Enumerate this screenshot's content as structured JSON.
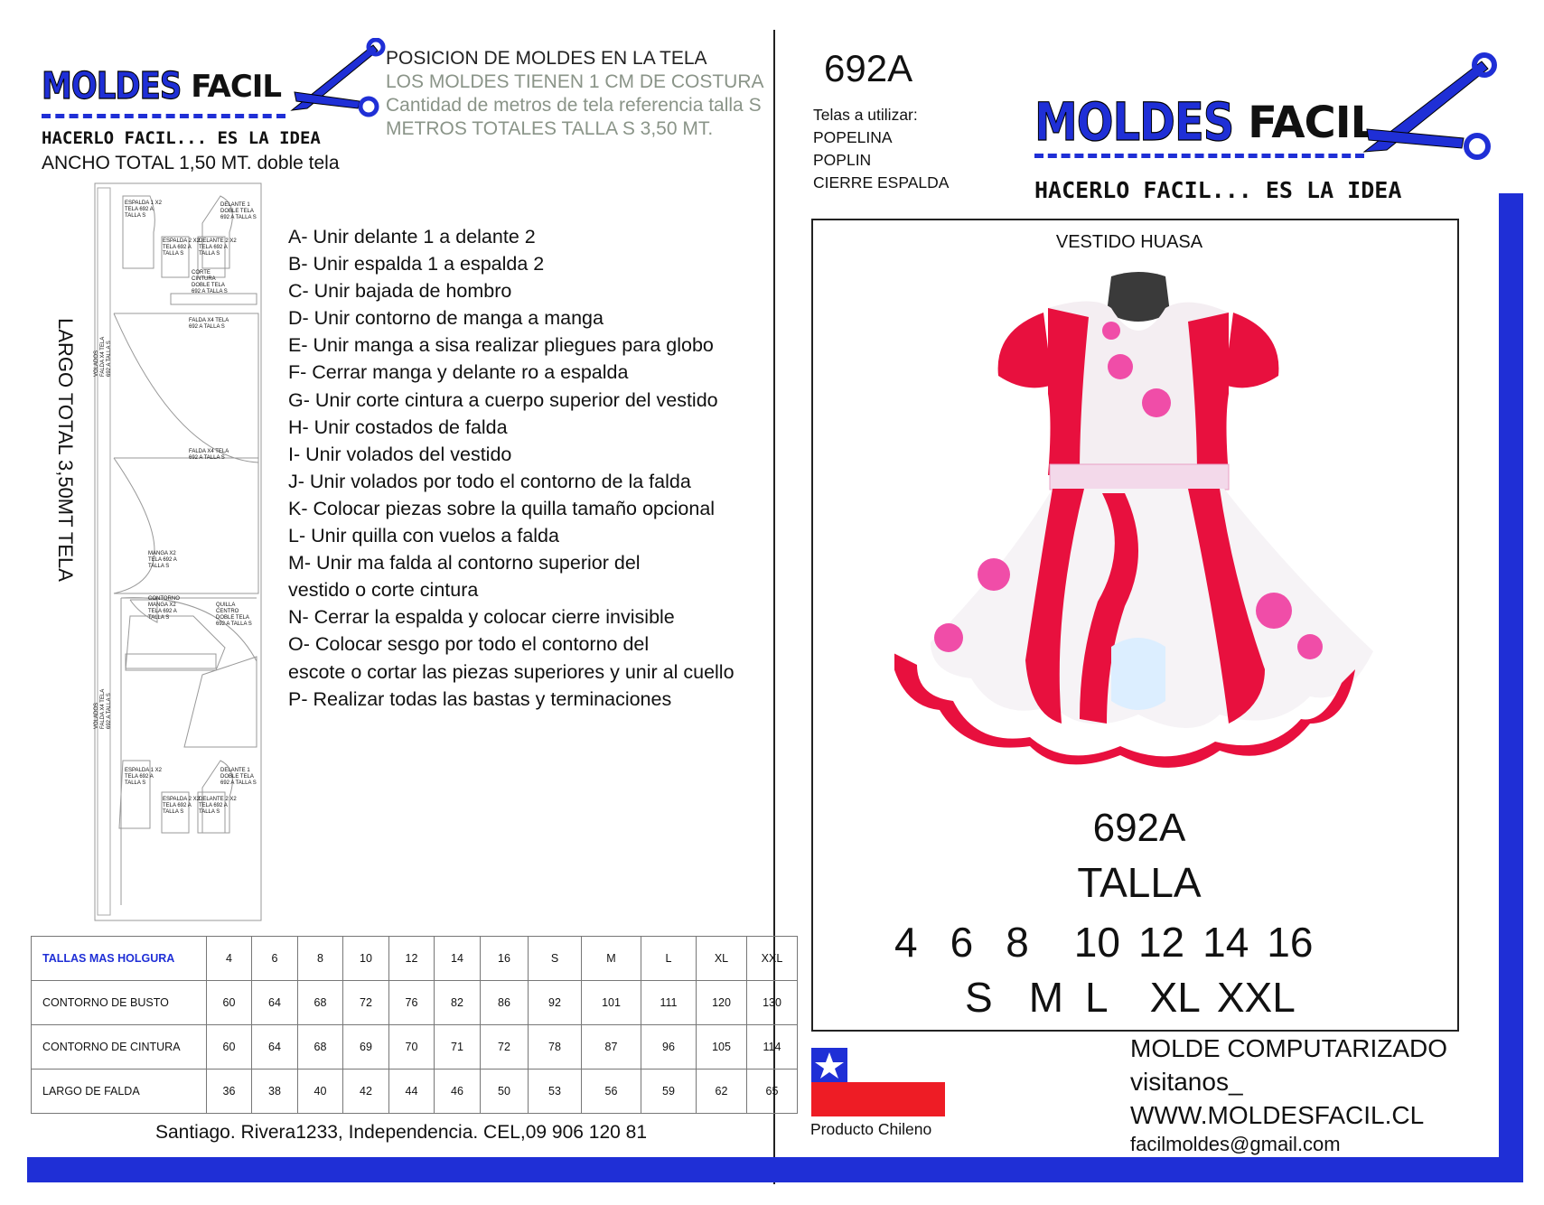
{
  "left": {
    "logo": {
      "brand1": "MOLDES",
      "brand2": "FACIL",
      "tagline": "HACERLO FACIL... ES LA IDEA"
    },
    "width_note": "ANCHO TOTAL  1,50 MT. doble tela",
    "header_lines": [
      "POSICION DE MOLDES EN LA TELA",
      "LOS MOLDES TIENEN 1 CM DE COSTURA",
      "Cantidad de metros de tela referencia talla S",
      "METROS TOTALES TALLA S 3,50 MT."
    ],
    "length_note": "LARGO TOTAL  3,50MT  TELA",
    "pieces": [
      "ESPALDA 1 X2 TELA 692 A TALLA S",
      "DELANTE 1 DOBLE TELA 692 A TALLA S",
      "ESPALDA 2 X2 TELA 692 A TALLA S",
      "DELANTE 2 X2 TELA 692 A TALLA S",
      "CORTE CINTURA DOBLE TELA 692 A TALLA S",
      "VOLADOS FALDA X4 TELA 692 A TALLA S",
      "FALDA X4 TELA 692 A TALLA S",
      "FALDA X4 TELA 692 A TALLA S",
      "MANGA X2 TELA 692 A TALLA S",
      "CONTORNO MANGA X2 TELA 692 A TALLA S",
      "QUILLA CENTRO DOBLE TELA 692 A TALLA S",
      "VOLADOS FALDA X4 TELA 692 A TALLA S",
      "ESPALDA 1 X2 TELA 692 A TALLA S",
      "DELANTE 1 DOBLE TELA 692 A TALLA S",
      "ESPALDA 2 X2 TELA 692 A TALLA S",
      "DELANTE 2 X2 TELA 692 A TALLA S"
    ],
    "steps": [
      "A- Unir delante 1 a delante 2",
      "B- Unir espalda 1 a espalda 2",
      "C- Unir bajada de hombro",
      "D- Unir contorno de manga a manga",
      "E- Unir manga a sisa realizar pliegues para globo",
      "F- Cerrar manga y delante ro a espalda",
      "G- Unir corte cintura a cuerpo superior del vestido",
      "H- Unir costados de falda",
      "I- Unir volados del vestido",
      "J- Unir volados por todo el contorno de la falda",
      "K- Colocar piezas sobre la quilla tamaño opcional",
      "L- Unir quilla con vuelos a falda",
      "M- Unir ma falda al contorno superior del",
      "vestido o corte cintura",
      "N- Cerrar la espalda y colocar cierre invisible",
      "O- Colocar sesgo por todo el contorno del",
      "escote o cortar las piezas superiores y unir al cuello",
      "P- Realizar todas las bastas y terminaciones"
    ],
    "table": {
      "header": [
        "TALLAS MAS HOLGURA",
        "4",
        "6",
        "8",
        "10",
        "12",
        "14",
        "16",
        "S",
        "M",
        "L",
        "XL",
        "XXL"
      ],
      "rows": [
        [
          "CONTORNO DE BUSTO",
          "60",
          "64",
          "68",
          "72",
          "76",
          "82",
          "86",
          "92",
          "101",
          "111",
          "120",
          "130"
        ],
        [
          "CONTORNO DE CINTURA",
          "60",
          "64",
          "68",
          "69",
          "70",
          "71",
          "72",
          "78",
          "87",
          "96",
          "105",
          "114"
        ],
        [
          "LARGO DE FALDA",
          "36",
          "38",
          "40",
          "42",
          "44",
          "46",
          "50",
          "53",
          "56",
          "59",
          "62",
          "65"
        ]
      ]
    },
    "address": "Santiago. Rivera1233, Independencia. CEL,09 906 120 81"
  },
  "right": {
    "code": "692A",
    "fabrics_label": "Telas a utilizar:",
    "fabrics": [
      "POPELINA",
      "POPLIN",
      "CIERRE ESPALDA"
    ],
    "logo": {
      "brand1": "MOLDES",
      "brand2": "FACIL",
      "tagline": "HACERLO FACIL... ES LA IDEA"
    },
    "product_name": "VESTIDO HUASA",
    "model_code": "692A",
    "size_title": "TALLA",
    "sizes_numeric": [
      "4",
      "6",
      "8",
      "10",
      "12",
      "14",
      "16"
    ],
    "sizes_letters": [
      "S",
      "M",
      "L",
      "XL",
      "XXL"
    ],
    "flag_caption": "Producto Chileno",
    "contact": [
      "MOLDE COMPUTARIZADO",
      "visitanos_",
      "WWW.MOLDESFACIL.CL"
    ],
    "email": "facilmoldes@gmail.com"
  }
}
